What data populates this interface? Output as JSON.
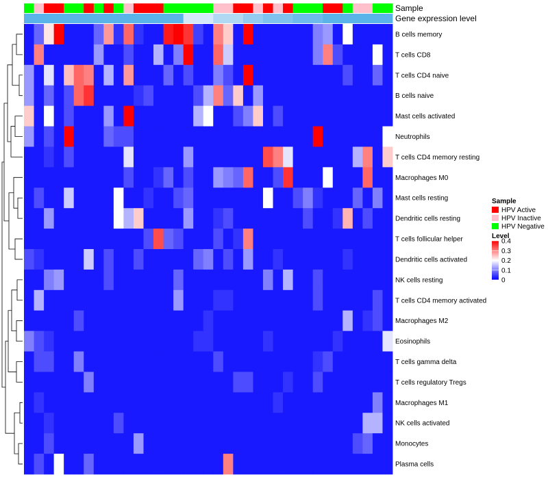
{
  "chart_data": {
    "type": "heatmap",
    "title": "",
    "annotation_labels": [
      "Sample",
      "Gene expression level"
    ],
    "sample_legend": {
      "title": "Sample",
      "entries": [
        {
          "name": "HPV Active",
          "color": "#ff0000"
        },
        {
          "name": "HPV Inactive",
          "color": "#ffc0cb"
        },
        {
          "name": "HPV Negative",
          "color": "#00ff00"
        }
      ]
    },
    "level_legend": {
      "title": "Level",
      "ticks": [
        "0.4",
        "0.3",
        "0.2",
        "0.1",
        "0"
      ],
      "tick_values": [
        0.4,
        0.3,
        0.2,
        0.1,
        0
      ],
      "range": [
        0,
        0.4
      ],
      "colors": [
        "#0000ff",
        "#ffffff",
        "#ff0000"
      ]
    },
    "rows": [
      "B cells memory",
      "T cells CD8",
      "T cells CD4 naive",
      "B cells naive",
      "Mast cells activated",
      "Neutrophils",
      "T cells CD4 memory resting",
      "Macrophages M0",
      "Mast cells resting",
      "Dendritic cells resting",
      "T cells follicular helper",
      "Dendritic cells activated",
      "NK cells resting",
      "T cells CD4 memory activated",
      "Macrophages M2",
      "Eosinophils",
      "T cells gamma delta",
      "T cells regulatory  Tregs",
      "Macrophages M1",
      "NK cells activated",
      "Monocytes",
      "Plasma cells"
    ],
    "sample_groups": [
      "N",
      "I",
      "A",
      "A",
      "N",
      "N",
      "A",
      "N",
      "A",
      "N",
      "I",
      "A",
      "A",
      "A",
      "N",
      "N",
      "N",
      "N",
      "N",
      "I",
      "I",
      "A",
      "A",
      "I",
      "A",
      "I",
      "A",
      "N",
      "N",
      "N",
      "A",
      "A",
      "N",
      "I",
      "I",
      "N",
      "N"
    ],
    "expression_level_colors": [
      "#5ab4ea",
      "#5ab4ea",
      "#5ab4ea",
      "#5ab4ea",
      "#5ab4ea",
      "#5ab4ea",
      "#5ab4ea",
      "#5ab4ea",
      "#5ab4ea",
      "#5ab4ea",
      "#5ab4ea",
      "#5ab4ea",
      "#5ab4ea",
      "#5ab4ea",
      "#5ab4ea",
      "#5ab4ea",
      "#d4e9f9",
      "#d4e9f9",
      "#d4e9f9",
      "#b2d9f4",
      "#b2d9f4",
      "#b2d9f4",
      "#94cbf0",
      "#94cbf0",
      "#80c2ee",
      "#80c2ee",
      "#80c2ee",
      "#6dbaec",
      "#6dbaec",
      "#6dbaec",
      "#5ab4ea",
      "#5ab4ea",
      "#5ab4ea",
      "#5ab4ea",
      "#5ab4ea",
      "#5ab4ea",
      "#5ab4ea"
    ],
    "values": [
      [
        0.02,
        0.08,
        0.22,
        0.4,
        0.02,
        0.02,
        0.02,
        0.08,
        0.28,
        0.04,
        0.32,
        0.04,
        0.02,
        0.02,
        0.38,
        0.4,
        0.36,
        0.05,
        0.02,
        0.3,
        0.24,
        0.02,
        0.4,
        0.02,
        0.02,
        0.02,
        0.02,
        0.02,
        0.02,
        0.1,
        0.12,
        0.02,
        0.2,
        0.02,
        0.02,
        0.02,
        0.02
      ],
      [
        0.02,
        0.3,
        0.02,
        0.02,
        0.02,
        0.02,
        0.02,
        0.12,
        0.02,
        0.02,
        0.06,
        0.02,
        0.02,
        0.14,
        0.02,
        0.1,
        0.4,
        0.02,
        0.02,
        0.32,
        0.16,
        0.02,
        0.02,
        0.02,
        0.02,
        0.02,
        0.02,
        0.02,
        0.02,
        0.1,
        0.3,
        0.06,
        0.02,
        0.02,
        0.02,
        0.2,
        0.02
      ],
      [
        0.12,
        0.02,
        0.18,
        0.02,
        0.25,
        0.32,
        0.3,
        0.02,
        0.14,
        0.02,
        0.28,
        0.02,
        0.02,
        0.02,
        0.08,
        0.02,
        0.06,
        0.02,
        0.02,
        0.1,
        0.06,
        0.02,
        0.4,
        0.02,
        0.02,
        0.02,
        0.02,
        0.02,
        0.02,
        0.02,
        0.02,
        0.02,
        0.06,
        0.02,
        0.02,
        0.08,
        0.02
      ],
      [
        0.12,
        0.02,
        0.08,
        0.02,
        0.06,
        0.32,
        0.36,
        0.02,
        0.02,
        0.02,
        0.02,
        0.04,
        0.06,
        0.02,
        0.02,
        0.02,
        0.02,
        0.06,
        0.14,
        0.3,
        0.08,
        0.24,
        0.02,
        0.12,
        0.02,
        0.02,
        0.02,
        0.02,
        0.02,
        0.02,
        0.02,
        0.02,
        0.02,
        0.02,
        0.02,
        0.02,
        0.02
      ],
      [
        0.24,
        0.02,
        0.2,
        0.02,
        0.06,
        0.02,
        0.02,
        0.02,
        0.12,
        0.02,
        0.4,
        0.02,
        0.02,
        0.02,
        0.02,
        0.02,
        0.02,
        0.14,
        0.2,
        0.02,
        0.02,
        0.06,
        0.1,
        0.24,
        0.02,
        0.06,
        0.02,
        0.02,
        0.02,
        0.02,
        0.02,
        0.02,
        0.02,
        0.02,
        0.02,
        0.02,
        0.02
      ],
      [
        0.12,
        0.02,
        0.06,
        0.02,
        0.4,
        0.02,
        0.02,
        0.02,
        0.08,
        0.06,
        0.06,
        0.02,
        0.02,
        0.02,
        0.02,
        0.02,
        0.02,
        0.02,
        0.02,
        0.02,
        0.02,
        0.02,
        0.02,
        0.02,
        0.02,
        0.02,
        0.02,
        0.02,
        0.02,
        0.4,
        0.02,
        0.02,
        0.02,
        0.02,
        0.02,
        0.02,
        0.2
      ],
      [
        0.02,
        0.02,
        0.04,
        0.02,
        0.06,
        0.02,
        0.02,
        0.02,
        0.02,
        0.02,
        0.18,
        0.02,
        0.02,
        0.02,
        0.02,
        0.02,
        0.12,
        0.02,
        0.02,
        0.02,
        0.02,
        0.02,
        0.02,
        0.02,
        0.34,
        0.3,
        0.18,
        0.02,
        0.02,
        0.02,
        0.02,
        0.02,
        0.02,
        0.14,
        0.3,
        0.02,
        0.24
      ],
      [
        0.02,
        0.02,
        0.02,
        0.02,
        0.02,
        0.02,
        0.02,
        0.02,
        0.02,
        0.02,
        0.06,
        0.02,
        0.02,
        0.04,
        0.08,
        0.02,
        0.06,
        0.02,
        0.02,
        0.12,
        0.1,
        0.08,
        0.32,
        0.02,
        0.02,
        0.06,
        0.36,
        0.02,
        0.02,
        0.02,
        0.2,
        0.02,
        0.02,
        0.02,
        0.32,
        0.02,
        0.02
      ],
      [
        0.02,
        0.06,
        0.02,
        0.02,
        0.16,
        0.02,
        0.02,
        0.02,
        0.02,
        0.2,
        0.02,
        0.02,
        0.04,
        0.02,
        0.02,
        0.06,
        0.08,
        0.02,
        0.02,
        0.02,
        0.02,
        0.02,
        0.02,
        0.02,
        0.2,
        0.02,
        0.02,
        0.06,
        0.1,
        0.04,
        0.02,
        0.02,
        0.02,
        0.08,
        0.02,
        0.1,
        0.02
      ],
      [
        0.02,
        0.02,
        0.12,
        0.02,
        0.02,
        0.02,
        0.02,
        0.02,
        0.02,
        0.2,
        0.14,
        0.24,
        0.02,
        0.02,
        0.02,
        0.02,
        0.12,
        0.02,
        0.02,
        0.04,
        0.06,
        0.02,
        0.02,
        0.02,
        0.02,
        0.02,
        0.02,
        0.02,
        0.06,
        0.02,
        0.02,
        0.04,
        0.26,
        0.02,
        0.06,
        0.02,
        0.02
      ],
      [
        0.02,
        0.02,
        0.02,
        0.02,
        0.02,
        0.02,
        0.02,
        0.02,
        0.02,
        0.02,
        0.02,
        0.02,
        0.06,
        0.34,
        0.08,
        0.06,
        0.02,
        0.02,
        0.02,
        0.06,
        0.02,
        0.04,
        0.3,
        0.02,
        0.02,
        0.02,
        0.02,
        0.02,
        0.02,
        0.02,
        0.02,
        0.02,
        0.02,
        0.02,
        0.02,
        0.02,
        0.02
      ],
      [
        0.06,
        0.04,
        0.02,
        0.02,
        0.02,
        0.02,
        0.16,
        0.02,
        0.06,
        0.02,
        0.02,
        0.06,
        0.02,
        0.02,
        0.02,
        0.02,
        0.02,
        0.08,
        0.1,
        0.02,
        0.06,
        0.02,
        0.12,
        0.02,
        0.02,
        0.04,
        0.02,
        0.02,
        0.02,
        0.02,
        0.02,
        0.02,
        0.04,
        0.02,
        0.02,
        0.02,
        0.02
      ],
      [
        0.02,
        0.02,
        0.1,
        0.12,
        0.02,
        0.02,
        0.02,
        0.02,
        0.06,
        0.02,
        0.02,
        0.02,
        0.02,
        0.02,
        0.02,
        0.08,
        0.02,
        0.02,
        0.02,
        0.02,
        0.02,
        0.02,
        0.02,
        0.02,
        0.1,
        0.02,
        0.14,
        0.02,
        0.02,
        0.06,
        0.02,
        0.02,
        0.02,
        0.02,
        0.02,
        0.02,
        0.02
      ],
      [
        0.02,
        0.14,
        0.02,
        0.02,
        0.02,
        0.02,
        0.02,
        0.02,
        0.02,
        0.02,
        0.02,
        0.02,
        0.02,
        0.02,
        0.02,
        0.12,
        0.02,
        0.02,
        0.02,
        0.04,
        0.04,
        0.02,
        0.02,
        0.02,
        0.02,
        0.02,
        0.02,
        0.02,
        0.02,
        0.06,
        0.02,
        0.02,
        0.02,
        0.02,
        0.02,
        0.06,
        0.02
      ],
      [
        0.02,
        0.02,
        0.02,
        0.02,
        0.02,
        0.06,
        0.02,
        0.02,
        0.02,
        0.02,
        0.02,
        0.02,
        0.02,
        0.02,
        0.02,
        0.02,
        0.02,
        0.02,
        0.04,
        0.02,
        0.02,
        0.02,
        0.02,
        0.02,
        0.02,
        0.02,
        0.02,
        0.02,
        0.02,
        0.02,
        0.02,
        0.02,
        0.14,
        0.02,
        0.04,
        0.06,
        0.02
      ],
      [
        0.1,
        0.06,
        0.04,
        0.02,
        0.02,
        0.02,
        0.02,
        0.02,
        0.02,
        0.02,
        0.02,
        0.02,
        0.02,
        0.02,
        0.02,
        0.02,
        0.02,
        0.04,
        0.04,
        0.02,
        0.02,
        0.02,
        0.02,
        0.02,
        0.04,
        0.02,
        0.02,
        0.02,
        0.02,
        0.02,
        0.02,
        0.04,
        0.02,
        0.02,
        0.02,
        0.02,
        0.18
      ],
      [
        0.02,
        0.06,
        0.06,
        0.02,
        0.02,
        0.1,
        0.02,
        0.02,
        0.02,
        0.02,
        0.02,
        0.02,
        0.02,
        0.02,
        0.02,
        0.02,
        0.02,
        0.02,
        0.02,
        0.06,
        0.02,
        0.02,
        0.02,
        0.02,
        0.02,
        0.02,
        0.02,
        0.02,
        0.02,
        0.04,
        0.06,
        0.02,
        0.02,
        0.02,
        0.02,
        0.02,
        0.02
      ],
      [
        0.02,
        0.02,
        0.02,
        0.02,
        0.02,
        0.02,
        0.1,
        0.02,
        0.02,
        0.02,
        0.02,
        0.02,
        0.02,
        0.02,
        0.02,
        0.02,
        0.02,
        0.02,
        0.02,
        0.02,
        0.02,
        0.06,
        0.06,
        0.02,
        0.02,
        0.02,
        0.04,
        0.02,
        0.02,
        0.06,
        0.02,
        0.02,
        0.02,
        0.02,
        0.02,
        0.02,
        0.02
      ],
      [
        0.02,
        0.04,
        0.02,
        0.02,
        0.02,
        0.02,
        0.02,
        0.02,
        0.02,
        0.02,
        0.02,
        0.02,
        0.02,
        0.02,
        0.02,
        0.02,
        0.02,
        0.02,
        0.02,
        0.02,
        0.02,
        0.02,
        0.02,
        0.02,
        0.02,
        0.04,
        0.02,
        0.02,
        0.02,
        0.02,
        0.02,
        0.02,
        0.02,
        0.02,
        0.02,
        0.1,
        0.02
      ],
      [
        0.02,
        0.02,
        0.04,
        0.02,
        0.02,
        0.02,
        0.02,
        0.02,
        0.02,
        0.06,
        0.02,
        0.02,
        0.02,
        0.02,
        0.02,
        0.02,
        0.02,
        0.02,
        0.02,
        0.02,
        0.02,
        0.02,
        0.02,
        0.02,
        0.02,
        0.02,
        0.02,
        0.02,
        0.02,
        0.02,
        0.02,
        0.02,
        0.02,
        0.02,
        0.14,
        0.14,
        0.02
      ],
      [
        0.02,
        0.02,
        0.06,
        0.02,
        0.02,
        0.02,
        0.02,
        0.02,
        0.02,
        0.02,
        0.02,
        0.12,
        0.02,
        0.02,
        0.02,
        0.02,
        0.02,
        0.02,
        0.02,
        0.02,
        0.02,
        0.02,
        0.02,
        0.02,
        0.02,
        0.02,
        0.02,
        0.02,
        0.02,
        0.02,
        0.02,
        0.02,
        0.02,
        0.06,
        0.08,
        0.02,
        0.02
      ],
      [
        0.02,
        0.06,
        0.02,
        0.2,
        0.02,
        0.02,
        0.08,
        0.02,
        0.02,
        0.02,
        0.02,
        0.02,
        0.02,
        0.02,
        0.02,
        0.02,
        0.02,
        0.02,
        0.02,
        0.02,
        0.3,
        0.02,
        0.02,
        0.02,
        0.02,
        0.02,
        0.02,
        0.02,
        0.02,
        0.02,
        0.02,
        0.02,
        0.02,
        0.02,
        0.02,
        0.02,
        0.02
      ]
    ]
  }
}
